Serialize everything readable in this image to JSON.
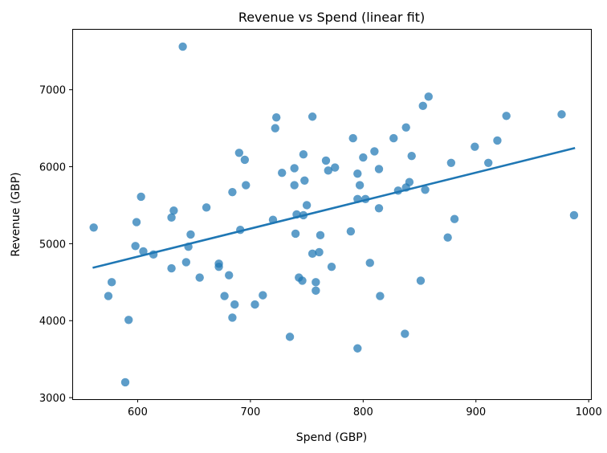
{
  "chart_data": {
    "type": "scatter",
    "title": "Revenue vs Spend (linear fit)",
    "xlabel": "Spend (GBP)",
    "ylabel": "Revenue (GBP)",
    "xlim": [
      542,
      1002
    ],
    "ylim": [
      2980,
      7790
    ],
    "xticks": [
      600,
      700,
      800,
      900,
      1000
    ],
    "yticks": [
      3000,
      4000,
      5000,
      6000,
      7000
    ],
    "grid": false,
    "point_color": "#1f77b4",
    "line_color": "#1f77b4",
    "points": [
      {
        "x": 561,
        "y": 5210
      },
      {
        "x": 574,
        "y": 4320
      },
      {
        "x": 577,
        "y": 4500
      },
      {
        "x": 589,
        "y": 3200
      },
      {
        "x": 592,
        "y": 4010
      },
      {
        "x": 598,
        "y": 4970
      },
      {
        "x": 599,
        "y": 5280
      },
      {
        "x": 603,
        "y": 5610
      },
      {
        "x": 605,
        "y": 4900
      },
      {
        "x": 614,
        "y": 4860
      },
      {
        "x": 630,
        "y": 5340
      },
      {
        "x": 630,
        "y": 4680
      },
      {
        "x": 632,
        "y": 5430
      },
      {
        "x": 640,
        "y": 7560
      },
      {
        "x": 643,
        "y": 4760
      },
      {
        "x": 645,
        "y": 4960
      },
      {
        "x": 647,
        "y": 5120
      },
      {
        "x": 655,
        "y": 4560
      },
      {
        "x": 661,
        "y": 5470
      },
      {
        "x": 672,
        "y": 4740
      },
      {
        "x": 672,
        "y": 4700
      },
      {
        "x": 677,
        "y": 4320
      },
      {
        "x": 681,
        "y": 4590
      },
      {
        "x": 684,
        "y": 5670
      },
      {
        "x": 684,
        "y": 4040
      },
      {
        "x": 686,
        "y": 4210
      },
      {
        "x": 690,
        "y": 6180
      },
      {
        "x": 691,
        "y": 5180
      },
      {
        "x": 695,
        "y": 6090
      },
      {
        "x": 696,
        "y": 5760
      },
      {
        "x": 704,
        "y": 4210
      },
      {
        "x": 711,
        "y": 4330
      },
      {
        "x": 720,
        "y": 5310
      },
      {
        "x": 722,
        "y": 6500
      },
      {
        "x": 723,
        "y": 6640
      },
      {
        "x": 728,
        "y": 5920
      },
      {
        "x": 735,
        "y": 3790
      },
      {
        "x": 739,
        "y": 5980
      },
      {
        "x": 739,
        "y": 5760
      },
      {
        "x": 740,
        "y": 5130
      },
      {
        "x": 741,
        "y": 5380
      },
      {
        "x": 743,
        "y": 4560
      },
      {
        "x": 746,
        "y": 4520
      },
      {
        "x": 747,
        "y": 6160
      },
      {
        "x": 747,
        "y": 5370
      },
      {
        "x": 748,
        "y": 5820
      },
      {
        "x": 750,
        "y": 5500
      },
      {
        "x": 755,
        "y": 6650
      },
      {
        "x": 755,
        "y": 4870
      },
      {
        "x": 758,
        "y": 4500
      },
      {
        "x": 758,
        "y": 4390
      },
      {
        "x": 761,
        "y": 4890
      },
      {
        "x": 762,
        "y": 5110
      },
      {
        "x": 767,
        "y": 6080
      },
      {
        "x": 769,
        "y": 5950
      },
      {
        "x": 772,
        "y": 4700
      },
      {
        "x": 775,
        "y": 5990
      },
      {
        "x": 789,
        "y": 5160
      },
      {
        "x": 791,
        "y": 6370
      },
      {
        "x": 795,
        "y": 5910
      },
      {
        "x": 795,
        "y": 5580
      },
      {
        "x": 795,
        "y": 3640
      },
      {
        "x": 797,
        "y": 5760
      },
      {
        "x": 800,
        "y": 6120
      },
      {
        "x": 802,
        "y": 5580
      },
      {
        "x": 806,
        "y": 4750
      },
      {
        "x": 810,
        "y": 6200
      },
      {
        "x": 814,
        "y": 5970
      },
      {
        "x": 814,
        "y": 5460
      },
      {
        "x": 815,
        "y": 4320
      },
      {
        "x": 827,
        "y": 6370
      },
      {
        "x": 831,
        "y": 5690
      },
      {
        "x": 837,
        "y": 3830
      },
      {
        "x": 838,
        "y": 6510
      },
      {
        "x": 838,
        "y": 5730
      },
      {
        "x": 841,
        "y": 5800
      },
      {
        "x": 843,
        "y": 6140
      },
      {
        "x": 851,
        "y": 4520
      },
      {
        "x": 853,
        "y": 6790
      },
      {
        "x": 855,
        "y": 5700
      },
      {
        "x": 858,
        "y": 6910
      },
      {
        "x": 875,
        "y": 5080
      },
      {
        "x": 878,
        "y": 6050
      },
      {
        "x": 881,
        "y": 5320
      },
      {
        "x": 899,
        "y": 6260
      },
      {
        "x": 911,
        "y": 6050
      },
      {
        "x": 919,
        "y": 6340
      },
      {
        "x": 927,
        "y": 6660
      },
      {
        "x": 976,
        "y": 6680
      },
      {
        "x": 987,
        "y": 5370
      }
    ],
    "fit_line": {
      "x": [
        561,
        987
      ],
      "y": [
        4690,
        6240
      ]
    }
  }
}
